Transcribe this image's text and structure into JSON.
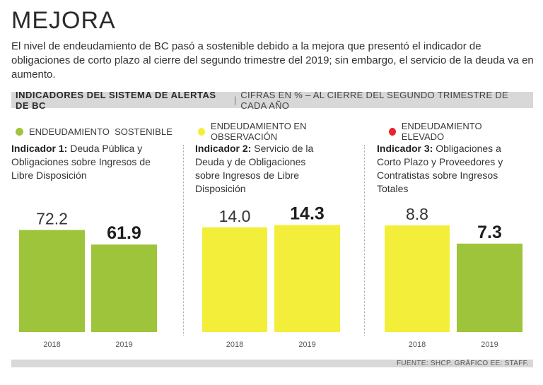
{
  "header": {
    "title": "MEJORA",
    "subtitle": "El nivel de endeudamiento de BC pasó a sostenible debido a la mejora que presentó el indicador de obligaciones de corto plazo al cierre del segundo trimestre del 2019; sin embargo, el servicio de la deuda va en aumento."
  },
  "banner": {
    "main": "INDICADORES DEL SISTEMA DE ALERTAS DE BC",
    "separator": "|",
    "sub": "CIFRAS EN % – AL CIERRE DEL SEGUNDO TRIMESTRE DE CADA AÑO"
  },
  "legend": [
    {
      "label": "ENDEUDAMIENTO  SOSTENIBLE",
      "color": "#9dc43b"
    },
    {
      "label": "ENDEUDAMIENTO EN OBSERVACIÓN",
      "color": "#f3ee3a"
    },
    {
      "label": "ENDEUDAMIENTO ELEVADO",
      "color": "#e8242c"
    }
  ],
  "panels": [
    {
      "bold": "Indicador 1:",
      "text": " Deuda Pública y Obligaciones sobre Ingresos de Libre Disposición"
    },
    {
      "bold": "Indicador 2:",
      "text": " Servicio de la Deuda y de Obligaciones sobre Ingresos de Libre Disposición"
    },
    {
      "bold": "Indicador 3:",
      "text": " Obligaciones a Corto Plazo y Proveedores y Contratistas sobre Ingresos Totales"
    }
  ],
  "source": "FUENTE: SHCP. GRÁFICO EE: STAFF.",
  "colors": {
    "sostenible": "#9dc43b",
    "observacion": "#f3ee3a",
    "elevado": "#e8242c"
  },
  "chart_data": [
    {
      "type": "bar",
      "title": "Indicador 1: Deuda Pública y Obligaciones sobre Ingresos de Libre Disposición",
      "categories": [
        "2018",
        "2019"
      ],
      "values": [
        72.2,
        61.9
      ],
      "labels": [
        "72.2",
        "61.9"
      ],
      "colors": [
        "#9dc43b",
        "#9dc43b"
      ],
      "ylim": [
        0,
        90
      ],
      "highlight_last": true
    },
    {
      "type": "bar",
      "title": "Indicador 2: Servicio de la Deuda y de Obligaciones sobre Ingresos de Libre Disposición",
      "categories": [
        "2018",
        "2019"
      ],
      "values": [
        14.0,
        14.3
      ],
      "labels": [
        "14.0",
        "14.3"
      ],
      "colors": [
        "#f3ee3a",
        "#f3ee3a"
      ],
      "ylim": [
        0,
        17
      ],
      "highlight_last": true
    },
    {
      "type": "bar",
      "title": "Indicador 3: Obligaciones a Corto Plazo y Proveedores y Contratistas sobre Ingresos Totales",
      "categories": [
        "2018",
        "2019"
      ],
      "values": [
        8.8,
        7.3
      ],
      "labels": [
        "8.8",
        "7.3"
      ],
      "colors": [
        "#f3ee3a",
        "#9dc43b"
      ],
      "ylim": [
        0,
        10.5
      ],
      "highlight_last": true
    }
  ]
}
